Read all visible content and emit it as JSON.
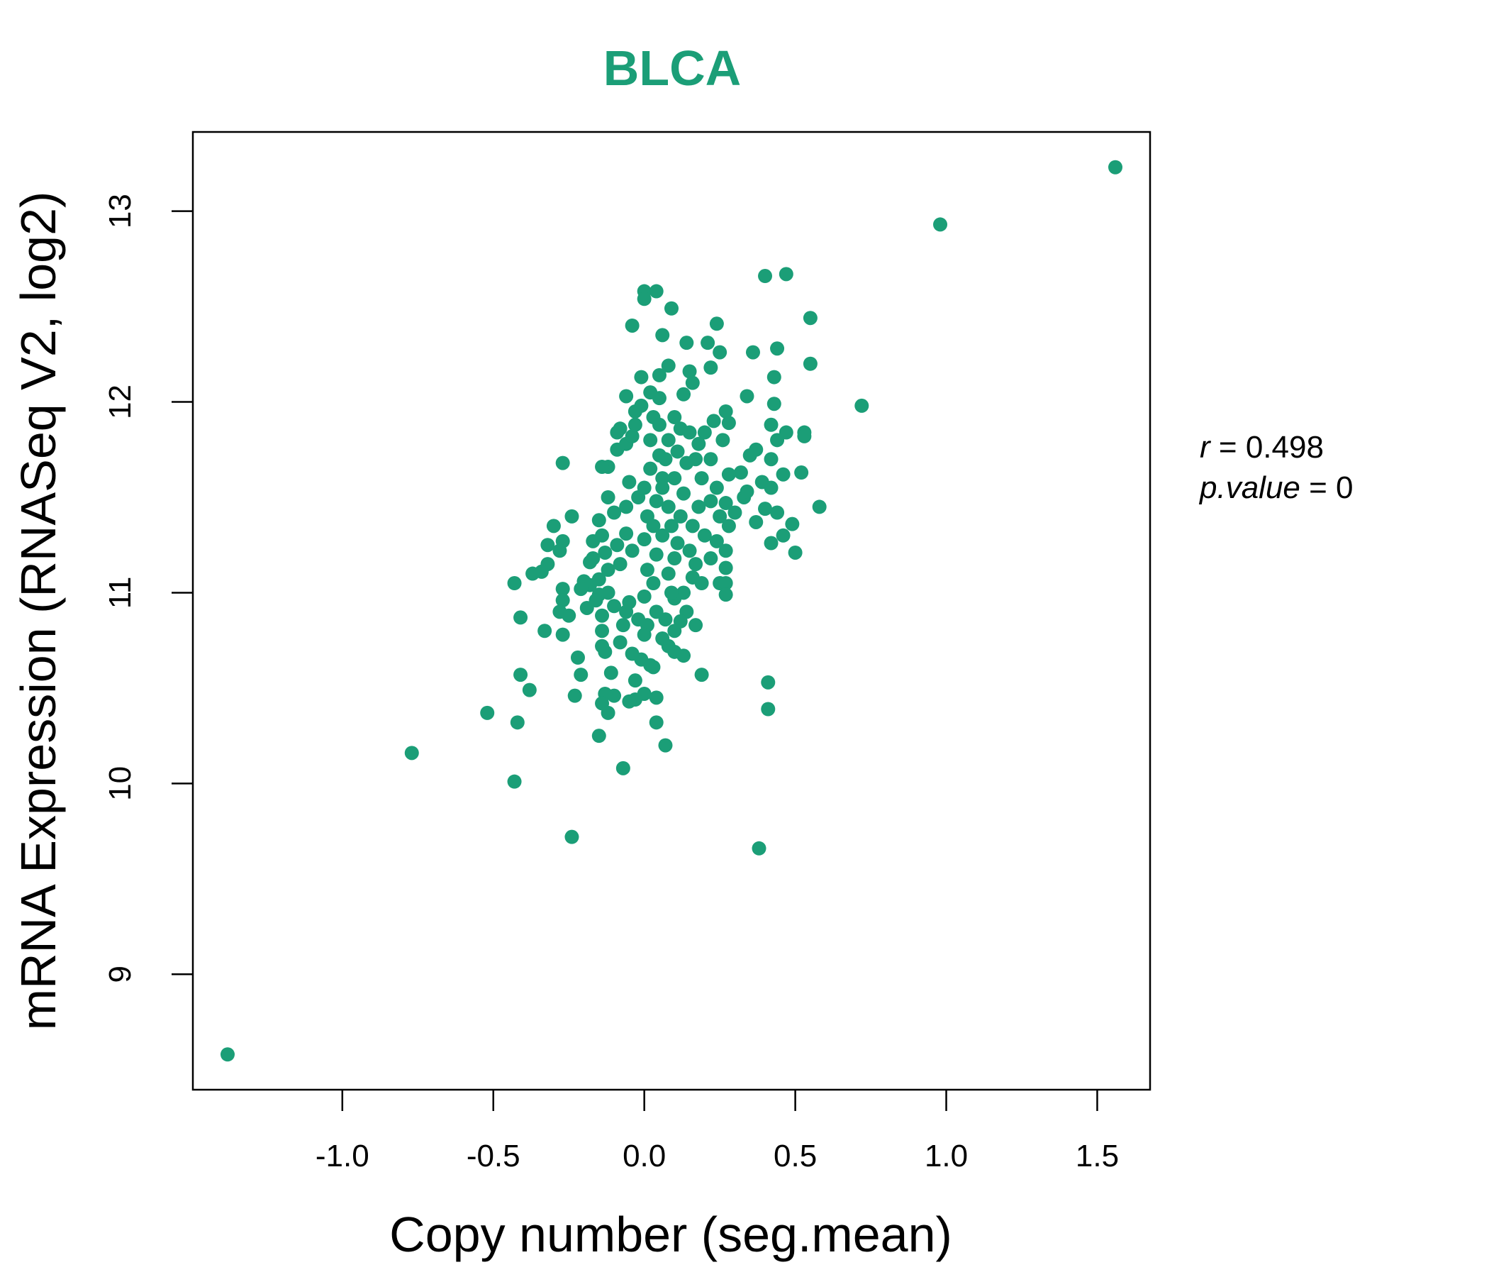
{
  "chart_data": {
    "type": "scatter",
    "title": "BLCA",
    "xlabel": "Copy number (seg.mean)",
    "ylabel": "mRNA Expression (RNASeq V2, log2)",
    "xlim": [
      -1.495,
      1.675
    ],
    "ylim": [
      8.395,
      13.415
    ],
    "xticks": [
      -1.0,
      -0.5,
      0.0,
      0.5,
      1.0,
      1.5
    ],
    "xtick_labels": [
      "-1.0",
      "-0.5",
      "0.0",
      "0.5",
      "1.0",
      "1.5"
    ],
    "yticks": [
      9,
      10,
      11,
      12,
      13
    ],
    "ytick_labels": [
      "9",
      "10",
      "11",
      "12",
      "13"
    ],
    "grid": false,
    "color": "#1b9e77",
    "annotations": {
      "r_label": "r",
      "r_value": "0.498",
      "p_label": "p.value",
      "p_value": "0"
    },
    "points": [
      [
        -1.38,
        8.58
      ],
      [
        1.56,
        13.23
      ],
      [
        0.98,
        12.93
      ],
      [
        0.72,
        11.98
      ],
      [
        -0.77,
        10.16
      ],
      [
        -0.52,
        10.37
      ],
      [
        -0.43,
        10.01
      ],
      [
        -0.24,
        9.72
      ],
      [
        0.38,
        9.66
      ],
      [
        -0.42,
        10.32
      ],
      [
        -0.41,
        10.57
      ],
      [
        -0.38,
        10.49
      ],
      [
        -0.43,
        11.05
      ],
      [
        -0.41,
        10.87
      ],
      [
        -0.27,
        11.68
      ],
      [
        0.4,
        12.66
      ],
      [
        0.47,
        12.67
      ],
      [
        0.55,
        12.44
      ],
      [
        0.55,
        12.2
      ],
      [
        0.58,
        11.45
      ],
      [
        0.52,
        11.63
      ],
      [
        0.5,
        11.21
      ],
      [
        0.53,
        11.84
      ],
      [
        0.53,
        11.82
      ],
      [
        0.41,
        10.53
      ],
      [
        0.41,
        10.39
      ],
      [
        0.07,
        10.2
      ],
      [
        -0.07,
        10.08
      ],
      [
        -0.15,
        10.25
      ],
      [
        0.04,
        10.32
      ],
      [
        0.0,
        12.58
      ],
      [
        0.04,
        12.58
      ],
      [
        0.0,
        12.54
      ],
      [
        0.09,
        12.49
      ],
      [
        -0.04,
        12.4
      ],
      [
        0.06,
        12.35
      ],
      [
        0.24,
        12.41
      ],
      [
        0.21,
        12.31
      ],
      [
        0.14,
        12.31
      ],
      [
        0.25,
        12.26
      ],
      [
        0.36,
        12.26
      ],
      [
        0.44,
        12.28
      ],
      [
        0.43,
        12.13
      ],
      [
        0.08,
        12.19
      ],
      [
        0.22,
        12.18
      ],
      [
        0.15,
        12.16
      ],
      [
        0.16,
        12.1
      ],
      [
        0.05,
        12.14
      ],
      [
        -0.01,
        12.13
      ],
      [
        0.34,
        12.03
      ],
      [
        0.13,
        12.04
      ],
      [
        0.43,
        11.99
      ],
      [
        -0.06,
        12.03
      ],
      [
        0.02,
        12.05
      ],
      [
        0.05,
        12.02
      ],
      [
        0.42,
        11.88
      ],
      [
        0.47,
        11.84
      ],
      [
        0.44,
        11.8
      ],
      [
        0.37,
        11.75
      ],
      [
        0.42,
        11.7
      ],
      [
        0.46,
        11.62
      ],
      [
        0.39,
        11.58
      ],
      [
        0.42,
        11.55
      ],
      [
        0.44,
        11.42
      ],
      [
        0.4,
        11.44
      ],
      [
        0.37,
        11.37
      ],
      [
        0.46,
        11.3
      ],
      [
        0.42,
        11.26
      ],
      [
        0.49,
        11.36
      ],
      [
        0.33,
        11.5
      ],
      [
        0.34,
        11.53
      ],
      [
        0.32,
        11.63
      ],
      [
        0.35,
        11.72
      ],
      [
        0.27,
        11.95
      ],
      [
        0.28,
        11.89
      ],
      [
        0.23,
        11.9
      ],
      [
        0.2,
        11.84
      ],
      [
        0.18,
        11.78
      ],
      [
        0.26,
        11.8
      ],
      [
        0.22,
        11.7
      ],
      [
        0.28,
        11.62
      ],
      [
        0.24,
        11.55
      ],
      [
        0.27,
        11.47
      ],
      [
        0.3,
        11.42
      ],
      [
        0.22,
        11.48
      ],
      [
        0.25,
        11.4
      ],
      [
        0.28,
        11.35
      ],
      [
        0.2,
        11.3
      ],
      [
        0.24,
        11.27
      ],
      [
        0.27,
        11.22
      ],
      [
        0.22,
        11.18
      ],
      [
        0.27,
        11.13
      ],
      [
        0.25,
        11.05
      ],
      [
        0.27,
        11.05
      ],
      [
        0.19,
        11.05
      ],
      [
        0.27,
        10.99
      ],
      [
        0.16,
        11.08
      ],
      [
        0.13,
        11.0
      ],
      [
        0.1,
        10.97
      ],
      [
        0.14,
        10.9
      ],
      [
        0.12,
        10.85
      ],
      [
        0.17,
        10.83
      ],
      [
        0.1,
        10.8
      ],
      [
        0.08,
        10.72
      ],
      [
        0.1,
        10.69
      ],
      [
        0.13,
        10.67
      ],
      [
        0.19,
        10.57
      ],
      [
        0.04,
        10.45
      ],
      [
        0.0,
        10.47
      ],
      [
        -0.03,
        10.44
      ],
      [
        -0.05,
        10.43
      ],
      [
        -0.1,
        10.46
      ],
      [
        -0.13,
        10.47
      ],
      [
        -0.14,
        10.42
      ],
      [
        -0.12,
        10.37
      ],
      [
        -0.11,
        10.58
      ],
      [
        -0.03,
        10.54
      ],
      [
        -0.01,
        10.65
      ],
      [
        0.02,
        10.62
      ],
      [
        0.03,
        10.61
      ],
      [
        -0.04,
        10.68
      ],
      [
        -0.13,
        10.69
      ],
      [
        -0.14,
        10.72
      ],
      [
        -0.08,
        10.74
      ],
      [
        -0.14,
        10.8
      ],
      [
        -0.07,
        10.83
      ],
      [
        -0.02,
        10.86
      ],
      [
        -0.06,
        10.9
      ],
      [
        -0.14,
        10.88
      ],
      [
        -0.1,
        10.93
      ],
      [
        -0.05,
        10.95
      ],
      [
        -0.15,
        10.99
      ],
      [
        -0.12,
        11.0
      ],
      [
        -0.18,
        11.04
      ],
      [
        -0.15,
        11.07
      ],
      [
        -0.12,
        11.12
      ],
      [
        -0.17,
        11.18
      ],
      [
        -0.13,
        11.21
      ],
      [
        -0.08,
        11.15
      ],
      [
        -0.04,
        11.22
      ],
      [
        -0.09,
        11.25
      ],
      [
        -0.06,
        11.31
      ],
      [
        -0.14,
        11.3
      ],
      [
        -0.15,
        11.38
      ],
      [
        -0.1,
        11.42
      ],
      [
        -0.12,
        11.5
      ],
      [
        -0.06,
        11.45
      ],
      [
        -0.02,
        11.5
      ],
      [
        -0.05,
        11.58
      ],
      [
        -0.12,
        11.66
      ],
      [
        -0.14,
        11.66
      ],
      [
        -0.09,
        11.75
      ],
      [
        -0.06,
        11.78
      ],
      [
        -0.04,
        11.82
      ],
      [
        -0.08,
        11.86
      ],
      [
        -0.09,
        11.84
      ],
      [
        -0.03,
        11.88
      ],
      [
        -0.03,
        11.95
      ],
      [
        -0.01,
        11.98
      ],
      [
        0.03,
        11.92
      ],
      [
        0.05,
        11.88
      ],
      [
        0.02,
        11.8
      ],
      [
        0.05,
        11.72
      ],
      [
        0.02,
        11.65
      ],
      [
        0.06,
        11.6
      ],
      [
        0.0,
        11.55
      ],
      [
        0.04,
        11.48
      ],
      [
        0.01,
        11.4
      ],
      [
        0.03,
        11.35
      ],
      [
        0.0,
        11.28
      ],
      [
        0.04,
        11.2
      ],
      [
        0.01,
        11.12
      ],
      [
        0.03,
        11.05
      ],
      [
        0.0,
        10.98
      ],
      [
        0.04,
        10.9
      ],
      [
        0.01,
        10.83
      ],
      [
        0.06,
        10.76
      ],
      [
        0.0,
        10.78
      ],
      [
        0.07,
        10.86
      ],
      [
        0.09,
        11.0
      ],
      [
        0.08,
        11.1
      ],
      [
        0.1,
        11.18
      ],
      [
        0.11,
        11.26
      ],
      [
        0.09,
        11.35
      ],
      [
        0.12,
        11.4
      ],
      [
        0.08,
        11.45
      ],
      [
        0.13,
        11.52
      ],
      [
        0.1,
        11.6
      ],
      [
        0.14,
        11.68
      ],
      [
        0.11,
        11.74
      ],
      [
        0.08,
        11.8
      ],
      [
        0.12,
        11.86
      ],
      [
        0.15,
        11.84
      ],
      [
        0.1,
        11.92
      ],
      [
        0.07,
        11.7
      ],
      [
        0.06,
        11.55
      ],
      [
        0.06,
        11.3
      ],
      [
        0.15,
        11.22
      ],
      [
        0.17,
        11.15
      ],
      [
        0.16,
        11.35
      ],
      [
        0.18,
        11.45
      ],
      [
        0.19,
        11.6
      ],
      [
        0.17,
        11.7
      ],
      [
        -0.27,
        11.02
      ],
      [
        -0.27,
        10.96
      ],
      [
        -0.28,
        10.9
      ],
      [
        -0.25,
        10.88
      ],
      [
        -0.27,
        10.78
      ],
      [
        -0.33,
        10.8
      ],
      [
        -0.22,
        10.66
      ],
      [
        -0.21,
        10.57
      ],
      [
        -0.23,
        10.46
      ],
      [
        -0.19,
        10.92
      ],
      [
        -0.2,
        11.06
      ],
      [
        -0.18,
        11.16
      ],
      [
        -0.17,
        11.27
      ],
      [
        -0.24,
        11.4
      ],
      [
        -0.3,
        11.35
      ],
      [
        -0.27,
        11.27
      ],
      [
        -0.28,
        11.22
      ],
      [
        -0.32,
        11.25
      ],
      [
        -0.32,
        11.15
      ],
      [
        -0.34,
        11.11
      ],
      [
        -0.37,
        11.1
      ],
      [
        -0.21,
        11.02
      ],
      [
        -0.16,
        10.96
      ]
    ]
  }
}
